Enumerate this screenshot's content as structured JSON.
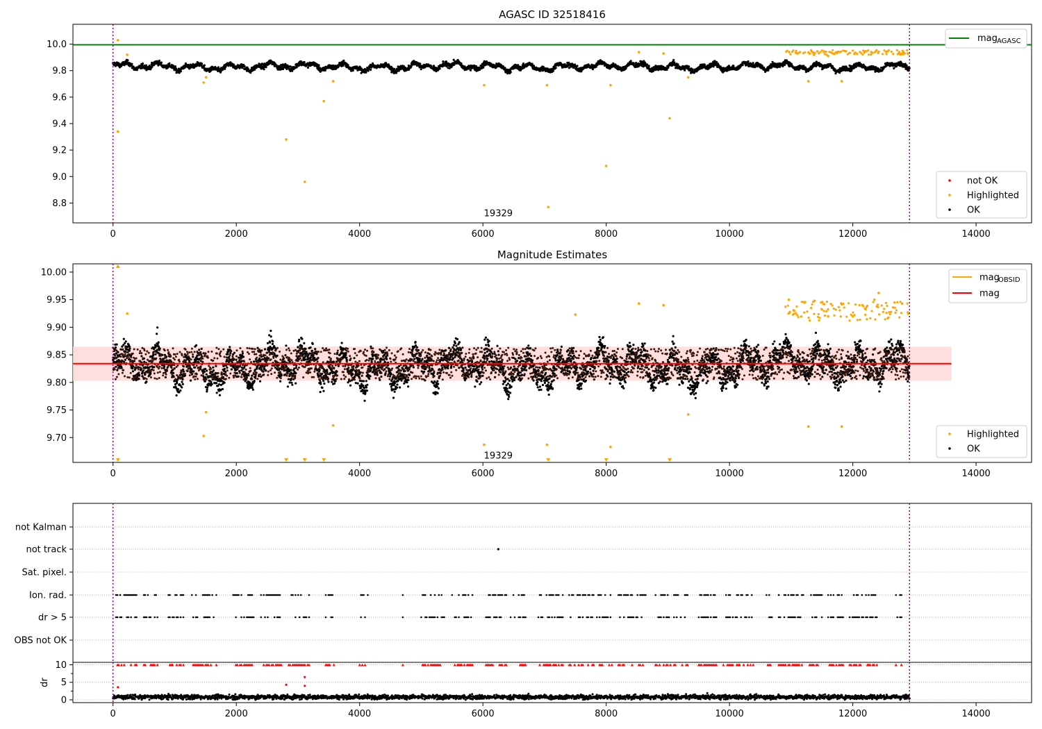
{
  "chart_data": [
    {
      "type": "scatter",
      "title": "AGASC ID 32518416",
      "xlim": [
        -650,
        14900
      ],
      "ylim": [
        8.65,
        10.15
      ],
      "xticks": [
        0,
        2000,
        4000,
        6000,
        8000,
        10000,
        12000,
        14000
      ],
      "yticks": [
        8.8,
        9.0,
        9.2,
        9.4,
        9.6,
        9.8,
        10.0
      ],
      "annotation": {
        "text": "19329",
        "x": 6250,
        "y": 8.72
      },
      "vlines": [
        0,
        12920
      ],
      "hline": {
        "name": "mag_AGASC",
        "y": 9.995,
        "color": "#008000"
      },
      "legend_top": {
        "label_main": "mag",
        "label_sub": "AGASC"
      },
      "legend_bottom": [
        {
          "label": "not OK",
          "color": "#ff0000"
        },
        {
          "label": "Highlighted",
          "color": "#ffa500"
        },
        {
          "label": "OK",
          "color": "#000000"
        }
      ],
      "highlighted_points": [
        [
          80,
          10.03
        ],
        [
          80,
          9.34
        ],
        [
          230,
          9.92
        ],
        [
          1470,
          9.71
        ],
        [
          1510,
          9.75
        ],
        [
          2810,
          9.28
        ],
        [
          3110,
          8.96
        ],
        [
          3420,
          9.57
        ],
        [
          3570,
          9.72
        ],
        [
          6020,
          9.69
        ],
        [
          7040,
          9.69
        ],
        [
          7060,
          8.77
        ],
        [
          8000,
          9.08
        ],
        [
          8070,
          9.69
        ],
        [
          8530,
          9.94
        ],
        [
          8930,
          9.93
        ],
        [
          9030,
          9.44
        ],
        [
          9330,
          9.75
        ],
        [
          11280,
          9.72
        ],
        [
          11820,
          9.72
        ],
        [
          10970,
          9.94
        ],
        [
          11100,
          9.93
        ],
        [
          11370,
          9.92
        ],
        [
          11600,
          9.91
        ],
        [
          12300,
          9.94
        ],
        [
          12380,
          9.95
        ],
        [
          12750,
          9.93
        ],
        [
          12820,
          9.94
        ]
      ]
    },
    {
      "type": "scatter",
      "title": "Magnitude Estimates",
      "xlim": [
        -650,
        14900
      ],
      "ylim": [
        9.655,
        10.015
      ],
      "xticks": [
        0,
        2000,
        4000,
        6000,
        8000,
        10000,
        12000,
        14000
      ],
      "yticks": [
        9.7,
        9.75,
        9.8,
        9.85,
        9.9,
        9.95,
        10.0
      ],
      "annotation": {
        "text": "19329",
        "x": 6250,
        "y": 9.667
      },
      "vlines": [
        0,
        12920
      ],
      "mean_line": {
        "name": "mag",
        "y": 9.834,
        "color": "#ff0000"
      },
      "band": {
        "low": 9.803,
        "high": 9.865
      },
      "legend_top": [
        {
          "label_main": "mag",
          "label_sub": "OBSID",
          "color": "#ffa500"
        },
        {
          "label_main": "mag",
          "label_sub": "",
          "color": "#ff0000"
        }
      ],
      "legend_bottom": [
        {
          "label": "Highlighted",
          "color": "#ffa500"
        },
        {
          "label": "OK",
          "color": "#000000"
        }
      ],
      "highlighted_points": [
        [
          80,
          10.01
        ],
        [
          230,
          9.925
        ],
        [
          1470,
          9.703
        ],
        [
          1510,
          9.746
        ],
        [
          3570,
          9.722
        ],
        [
          6020,
          9.687
        ],
        [
          7040,
          9.687
        ],
        [
          7500,
          9.923
        ],
        [
          8070,
          9.683
        ],
        [
          8530,
          9.943
        ],
        [
          8930,
          9.94
        ],
        [
          9330,
          9.742
        ],
        [
          11280,
          9.72
        ],
        [
          11820,
          9.72
        ],
        [
          10960,
          9.95
        ],
        [
          11050,
          9.93
        ],
        [
          11380,
          9.948
        ],
        [
          11600,
          9.92
        ],
        [
          12000,
          9.92
        ],
        [
          12350,
          9.95
        ],
        [
          12420,
          9.962
        ],
        [
          12800,
          9.943
        ]
      ],
      "clipped_low_points": [
        80,
        2810,
        3110,
        3420,
        7060,
        8000,
        9030
      ]
    },
    {
      "type": "scatter",
      "title": "",
      "categories": [
        "not Kalman",
        "not track",
        "Sat. pixel.",
        "Ion. rad.",
        "dr > 5",
        "OBS not OK"
      ],
      "xlim": [
        -650,
        14900
      ],
      "vlines": [
        0,
        12920
      ],
      "not_track_points": [
        6250
      ],
      "flag_ranges": [
        [
          50,
          400
        ],
        [
          500,
          720
        ],
        [
          900,
          1150
        ],
        [
          1280,
          1700
        ],
        [
          1950,
          2300
        ],
        [
          2400,
          2750
        ],
        [
          2850,
          3200
        ],
        [
          3450,
          3600
        ],
        [
          4000,
          4150
        ],
        [
          4700,
          4720
        ],
        [
          5000,
          5400
        ],
        [
          5500,
          5850
        ],
        [
          6050,
          6400
        ],
        [
          6450,
          6700
        ],
        [
          6900,
          7300
        ],
        [
          7400,
          7800
        ],
        [
          7850,
          8100
        ],
        [
          8200,
          8650
        ],
        [
          8800,
          9050
        ],
        [
          9100,
          9350
        ],
        [
          9500,
          9800
        ],
        [
          9900,
          10400
        ],
        [
          10600,
          10700
        ],
        [
          10800,
          11200
        ],
        [
          11300,
          11500
        ],
        [
          11600,
          11850
        ],
        [
          11950,
          12400
        ],
        [
          12700,
          12800
        ]
      ]
    },
    {
      "type": "scatter",
      "title": "",
      "ylabel": "dr",
      "xlim": [
        -650,
        14900
      ],
      "ylim": [
        -0.8,
        10.7
      ],
      "xticks": [
        0,
        2000,
        4000,
        6000,
        8000,
        10000,
        12000,
        14000
      ],
      "yticks": [
        0,
        5,
        10
      ],
      "vlines": [
        0,
        12920
      ],
      "outlier_points": [
        [
          80,
          3.6
        ],
        [
          2810,
          4.3
        ],
        [
          3110,
          4.0
        ],
        [
          3110,
          6.5
        ]
      ],
      "capped_value": 10,
      "capped_ranges": [
        [
          50,
          400
        ],
        [
          500,
          720
        ],
        [
          900,
          1150
        ],
        [
          1280,
          1700
        ],
        [
          1950,
          2300
        ],
        [
          2400,
          2750
        ],
        [
          2850,
          3200
        ],
        [
          3450,
          3600
        ],
        [
          4000,
          4150
        ],
        [
          4700,
          4720
        ],
        [
          5000,
          5400
        ],
        [
          5500,
          5850
        ],
        [
          6050,
          6400
        ],
        [
          6450,
          6700
        ],
        [
          6900,
          7300
        ],
        [
          7400,
          7800
        ],
        [
          7850,
          8100
        ],
        [
          8200,
          8650
        ],
        [
          8800,
          9050
        ],
        [
          9100,
          9350
        ],
        [
          9500,
          9800
        ],
        [
          9900,
          10400
        ],
        [
          10600,
          10700
        ],
        [
          10800,
          11200
        ],
        [
          11300,
          11500
        ],
        [
          11600,
          11850
        ],
        [
          11950,
          12400
        ],
        [
          12700,
          12800
        ]
      ]
    }
  ]
}
